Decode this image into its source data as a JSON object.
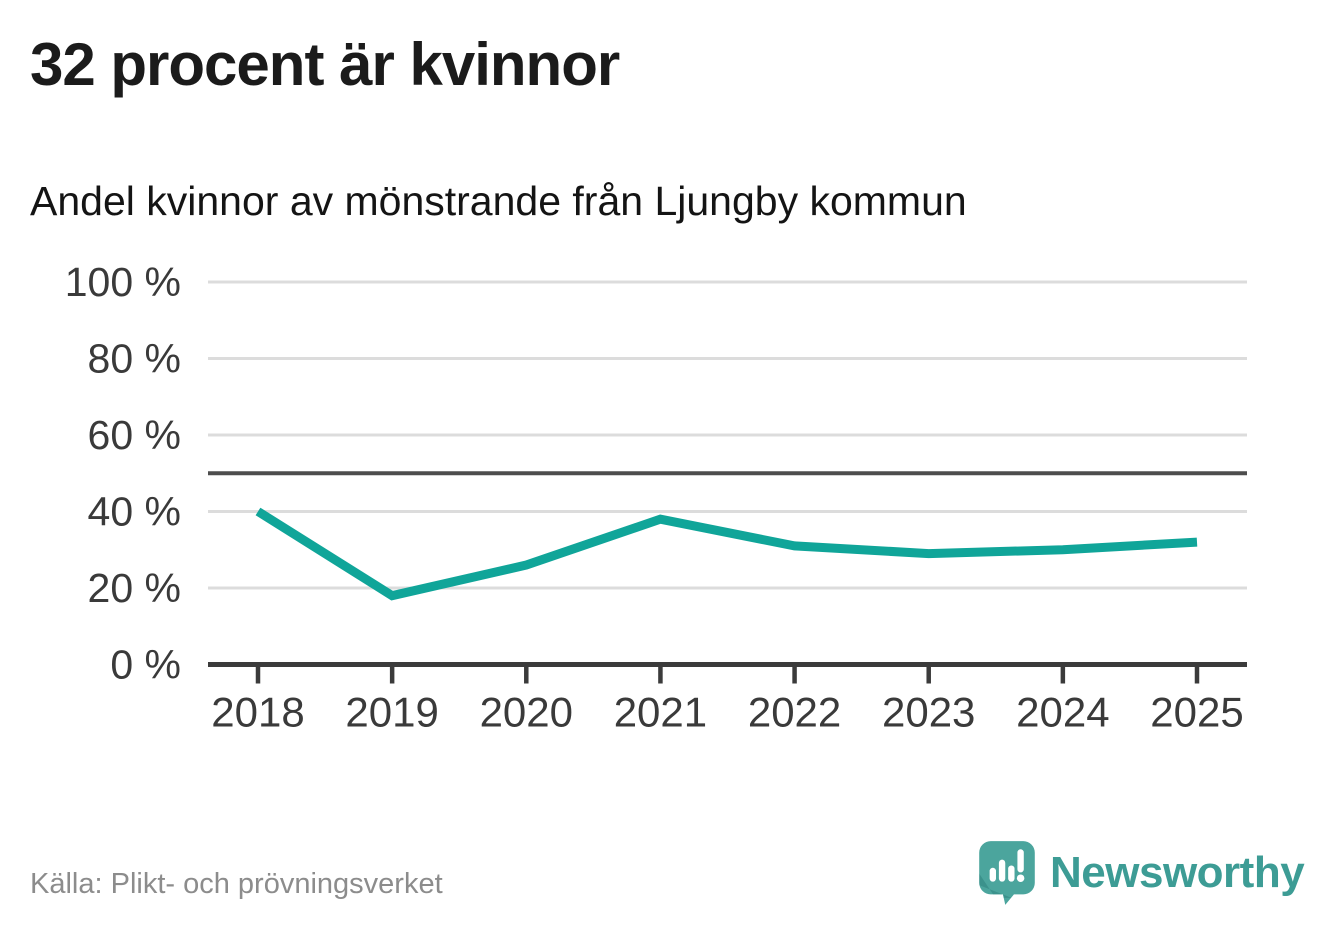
{
  "header": {
    "title": "32 procent är kvinnor",
    "subtitle": "Andel kvinnor av mönstrande från Ljungby kommun"
  },
  "chart_data": {
    "type": "line",
    "title": "32 procent är kvinnor",
    "subtitle": "Andel kvinnor av mönstrande från Ljungby kommun",
    "categories": [
      "2018",
      "2019",
      "2020",
      "2021",
      "2022",
      "2023",
      "2024",
      "2025"
    ],
    "series": [
      {
        "name": "Andel kvinnor av mönstrande",
        "values": [
          40,
          18,
          26,
          38,
          31,
          29,
          30,
          32
        ]
      }
    ],
    "xlabel": "",
    "ylabel": "",
    "ylim": [
      0,
      100
    ],
    "yticks": [
      0,
      20,
      40,
      60,
      80,
      100
    ],
    "ytick_suffix": " %",
    "reference_line_y": 50,
    "grid": "horizontal",
    "legend": "none",
    "colors": {
      "line": "#10a599",
      "grid": "#dcdcdc",
      "reference_line": "#4d4d4d",
      "axis": "#3b3b3b",
      "tick_label": "#3a3a3a"
    }
  },
  "footer": {
    "source": "Källa: Plikt- och prövningsverket",
    "brand": "Newsworthy"
  },
  "icons": {
    "logo": "newsworthy-speech-bubble-chart-icon"
  },
  "brand_colors": {
    "logo_bubble": "#4ba59d",
    "logo_bubble_shade": "#2f837d",
    "logo_glyph": "#ffffff",
    "brand_text": "#3d9c95"
  }
}
